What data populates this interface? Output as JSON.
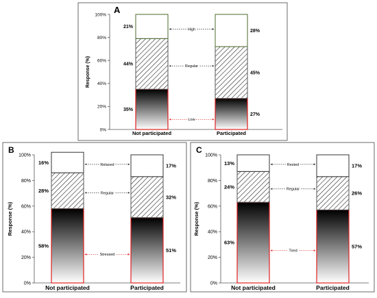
{
  "colors": {
    "low_outline": "#e02020",
    "mid_outline": "#555555",
    "high_outline": "#4a6a2a",
    "top_outline": "#333333",
    "gradient_top": "#000000",
    "gradient_bottom": "#ffffff"
  },
  "chart_data": [
    {
      "type": "bar",
      "stacked": true,
      "title": "A",
      "ylabel": "Response (%)",
      "ylim": [
        0,
        100
      ],
      "yticks": [
        "0%",
        "20%",
        "40%",
        "60%",
        "80%",
        "100%"
      ],
      "categories": [
        "Not participated",
        "Participated"
      ],
      "series": [
        {
          "name": "Low",
          "values": [
            35,
            27
          ],
          "value_labels": [
            "35%",
            "27%"
          ]
        },
        {
          "name": "Regular",
          "values": [
            44,
            45
          ],
          "value_labels": [
            "44%",
            "45%"
          ]
        },
        {
          "name": "High",
          "values": [
            21,
            28
          ],
          "value_labels": [
            "21%",
            "28%"
          ]
        }
      ]
    },
    {
      "type": "bar",
      "stacked": true,
      "title": "B",
      "ylabel": "Response (%)",
      "ylim": [
        0,
        100
      ],
      "yticks": [
        "0%",
        "20%",
        "40%",
        "60%",
        "80%",
        "100%"
      ],
      "categories": [
        "Not participated",
        "Participated"
      ],
      "series": [
        {
          "name": "Stressed",
          "values": [
            58,
            51
          ],
          "value_labels": [
            "58%",
            "51%"
          ]
        },
        {
          "name": "Regular",
          "values": [
            28,
            32
          ],
          "value_labels": [
            "28%",
            "32%"
          ]
        },
        {
          "name": "Relaxed",
          "values": [
            16,
            17
          ],
          "value_labels": [
            "16%",
            "17%"
          ]
        }
      ]
    },
    {
      "type": "bar",
      "stacked": true,
      "title": "C",
      "ylabel": "Response (%)",
      "ylim": [
        0,
        100
      ],
      "yticks": [
        "0%",
        "20%",
        "40%",
        "60%",
        "80%",
        "100%"
      ],
      "categories": [
        "Not participated",
        "Participated"
      ],
      "series": [
        {
          "name": "Tired",
          "values": [
            63,
            57
          ],
          "value_labels": [
            "63%",
            "57%"
          ]
        },
        {
          "name": "Regular",
          "values": [
            24,
            26
          ],
          "value_labels": [
            "24%",
            "26%"
          ]
        },
        {
          "name": "Rested",
          "values": [
            13,
            17
          ],
          "value_labels": [
            "13%",
            "17%"
          ]
        }
      ]
    }
  ]
}
